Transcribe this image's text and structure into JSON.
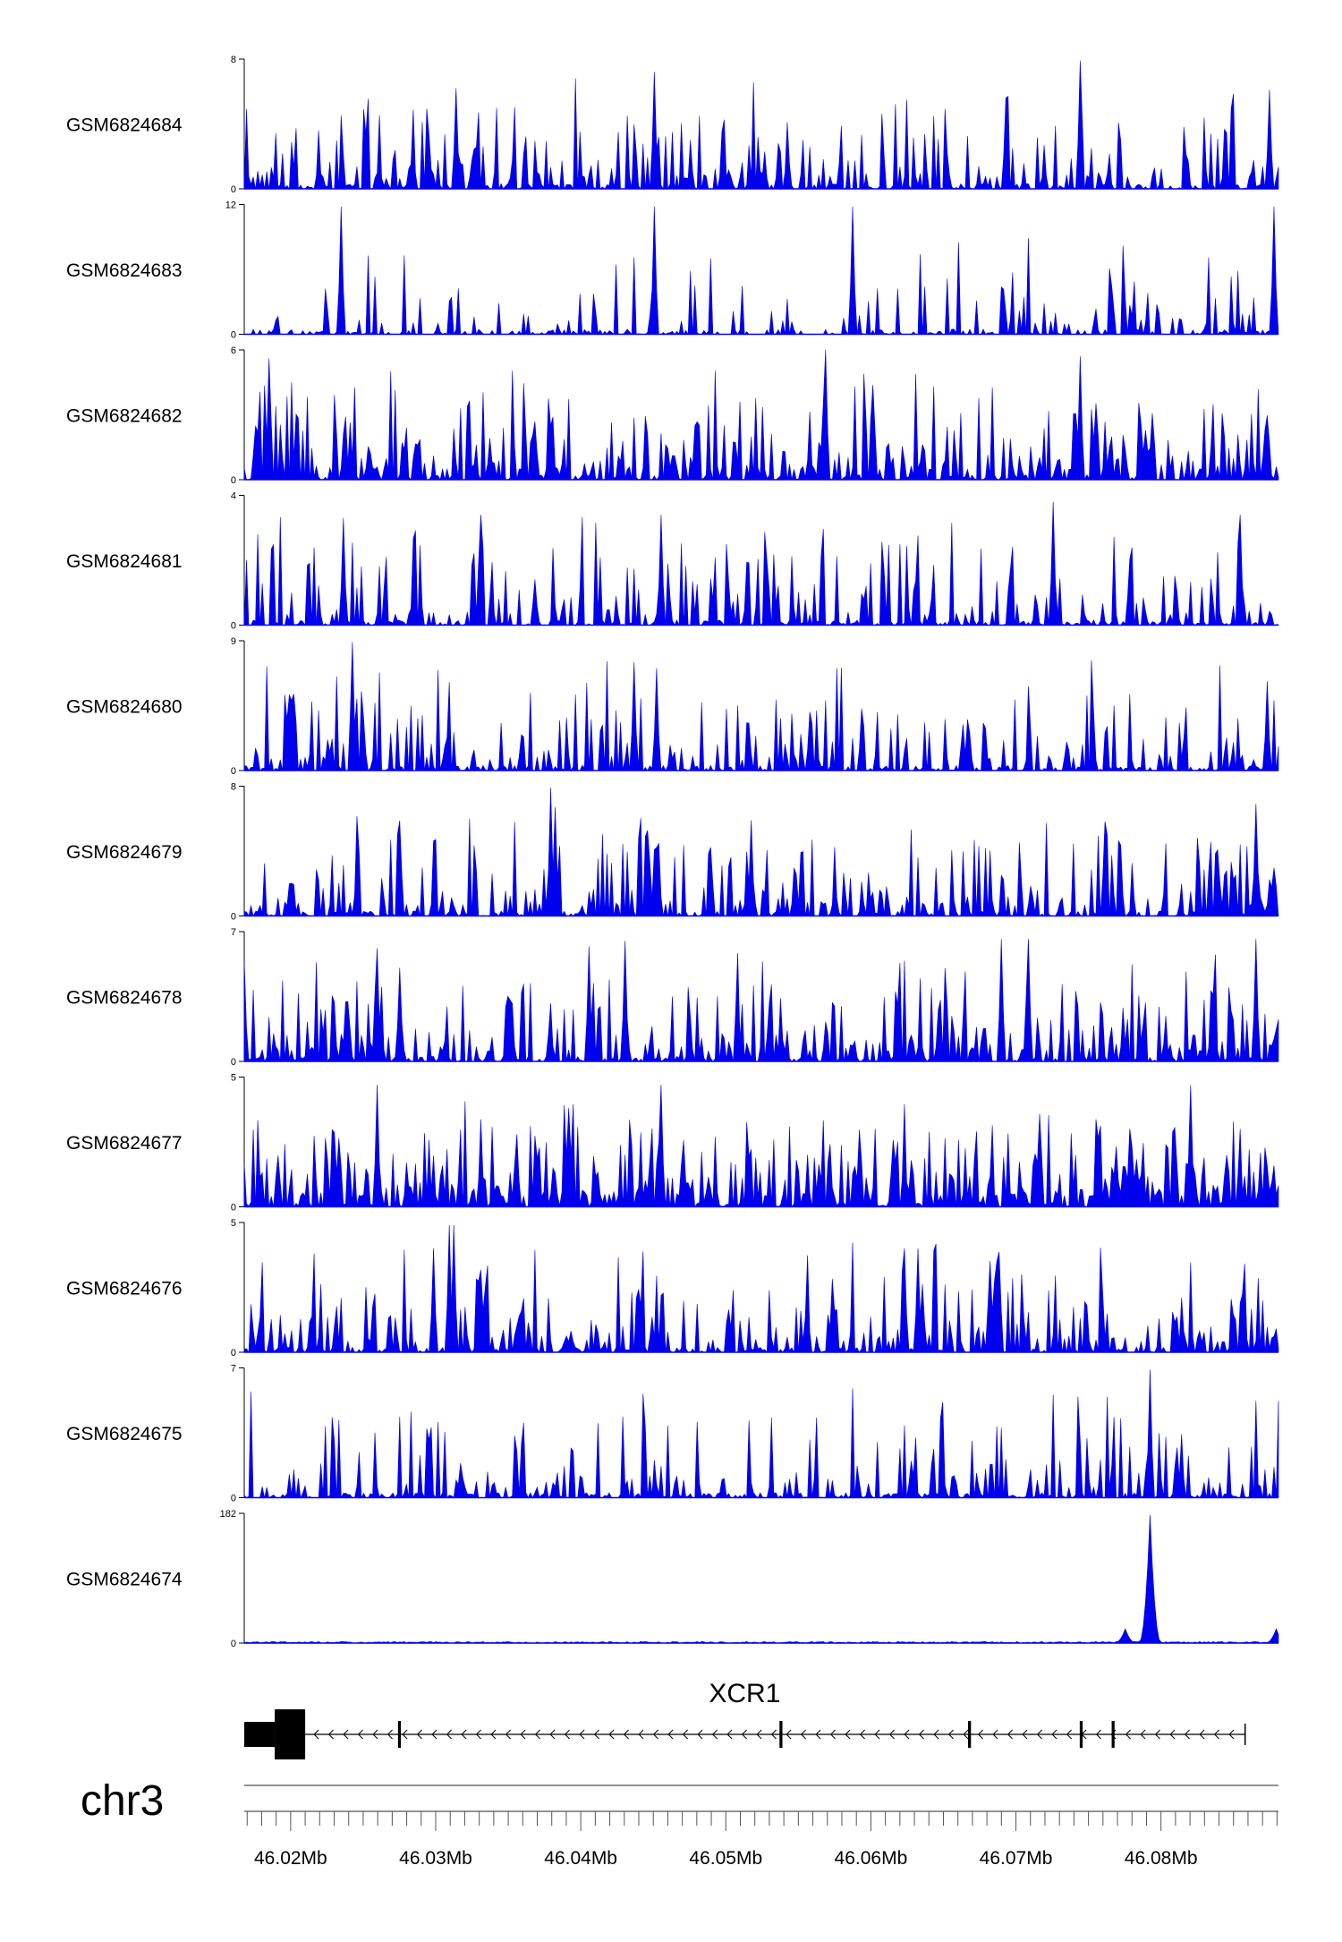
{
  "chart_data": {
    "type": "area",
    "chromosome": "chr3",
    "x_range_mb": [
      46.0168,
      46.0881
    ],
    "x_ticks": [
      {
        "value": 46.02,
        "label": "46.02Mb"
      },
      {
        "value": 46.03,
        "label": "46.03Mb"
      },
      {
        "value": 46.04,
        "label": "46.04Mb"
      },
      {
        "value": 46.05,
        "label": "46.05Mb"
      },
      {
        "value": 46.06,
        "label": "46.06Mb"
      },
      {
        "value": 46.07,
        "label": "46.07Mb"
      },
      {
        "value": 46.08,
        "label": "46.08Mb"
      }
    ],
    "colors": {
      "signal": "#0000ee",
      "axis": "#000000",
      "gene": "#000000"
    },
    "tracks": [
      {
        "name": "GSM6824684",
        "ymin": "0",
        "ymax": "8",
        "ymax_value": 8,
        "seed": 684,
        "density": 0.45,
        "gap": 0.4,
        "peaks": [
          [
            46.0314,
            6.2
          ],
          [
            46.0451,
            7.2
          ],
          [
            46.0693,
            5.6
          ],
          [
            46.0745,
            7.9
          ],
          [
            46.0875,
            6.1
          ]
        ]
      },
      {
        "name": "GSM6824683",
        "ymin": "0",
        "ymax": "12",
        "ymax_value": 12,
        "seed": 683,
        "density": 0.22,
        "gap": 0.55,
        "peaks": [
          [
            46.0235,
            11.8
          ],
          [
            46.0451,
            11.8
          ],
          [
            46.0588,
            11.8
          ],
          [
            46.0878,
            11.8
          ]
        ]
      },
      {
        "name": "GSM6824682",
        "ymin": "0",
        "ymax": "6",
        "ymax_value": 6,
        "seed": 682,
        "density": 0.55,
        "gap": 0.3,
        "peaks": [
          [
            46.0185,
            5.6
          ],
          [
            46.0569,
            6.0
          ],
          [
            46.0745,
            5.7
          ]
        ]
      },
      {
        "name": "GSM6824681",
        "ymin": "0",
        "ymax": "4",
        "ymax_value": 4,
        "seed": 681,
        "density": 0.4,
        "gap": 0.4,
        "peaks": [
          [
            46.0236,
            3.3
          ],
          [
            46.0331,
            3.4
          ],
          [
            46.0456,
            3.4
          ],
          [
            46.0726,
            3.8
          ],
          [
            46.0854,
            3.4
          ]
        ]
      },
      {
        "name": "GSM6824680",
        "ymin": "0",
        "ymax": "9",
        "ymax_value": 9,
        "seed": 680,
        "density": 0.4,
        "gap": 0.45,
        "peaks": [
          [
            46.0243,
            8.9
          ],
          [
            46.0436,
            7.5
          ],
          [
            46.0453,
            7.1
          ],
          [
            46.0874,
            6.2
          ]
        ]
      },
      {
        "name": "GSM6824679",
        "ymin": "0",
        "ymax": "8",
        "ymax_value": 8,
        "seed": 679,
        "density": 0.45,
        "gap": 0.4,
        "peaks": [
          [
            46.0383,
            6.7
          ],
          [
            46.0379,
            7.9
          ],
          [
            46.0517,
            5.9
          ],
          [
            46.0866,
            6.9
          ]
        ]
      },
      {
        "name": "GSM6824678",
        "ymin": "0",
        "ymax": "7",
        "ymax_value": 7,
        "seed": 678,
        "density": 0.5,
        "gap": 0.35,
        "peaks": [
          [
            46.026,
            6.1
          ],
          [
            46.0405,
            6.2
          ],
          [
            46.043,
            6.5
          ],
          [
            46.069,
            6.6
          ],
          [
            46.0708,
            6.6
          ],
          [
            46.0866,
            6.6
          ]
        ]
      },
      {
        "name": "GSM6824677",
        "ymin": "0",
        "ymax": "5",
        "ymax_value": 5,
        "seed": 677,
        "density": 0.7,
        "gap": 0.2,
        "peaks": [
          [
            46.0259,
            4.7
          ],
          [
            46.0456,
            4.7
          ],
          [
            46.082,
            4.7
          ]
        ]
      },
      {
        "name": "GSM6824676",
        "ymin": "0",
        "ymax": "5",
        "ymax_value": 5,
        "seed": 676,
        "density": 0.45,
        "gap": 0.4,
        "peaks": [
          [
            46.0298,
            4.0
          ],
          [
            46.031,
            4.9
          ],
          [
            46.0313,
            4.9
          ],
          [
            46.0623,
            4.0
          ],
          [
            46.0632,
            4.0
          ]
        ]
      },
      {
        "name": "GSM6824675",
        "ymin": "0",
        "ymax": "7",
        "ymax_value": 7,
        "seed": 675,
        "density": 0.35,
        "gap": 0.3,
        "peaks": [
          [
            46.0792,
            6.9
          ]
        ]
      },
      {
        "name": "GSM6824674",
        "ymin": "0",
        "ymax": "182",
        "ymax_value": 182,
        "seed": 674,
        "density": 0.05,
        "gap": 0.0,
        "peaks": [
          [
            46.0793,
            180
          ],
          [
            46.0776,
            20
          ],
          [
            46.088,
            20
          ]
        ]
      }
    ],
    "gene": {
      "name": "XCR1",
      "strand": "-",
      "start_mb": 46.0168,
      "end_mb": 46.0858,
      "exons_mb": [
        [
          46.0168,
          46.0189
        ],
        [
          46.0189,
          46.021
        ],
        [
          46.0274,
          46.0276
        ],
        [
          46.0537,
          46.0539
        ],
        [
          46.0667,
          46.0669
        ],
        [
          46.0744,
          46.0746
        ],
        [
          46.0766,
          46.0768
        ]
      ]
    }
  }
}
